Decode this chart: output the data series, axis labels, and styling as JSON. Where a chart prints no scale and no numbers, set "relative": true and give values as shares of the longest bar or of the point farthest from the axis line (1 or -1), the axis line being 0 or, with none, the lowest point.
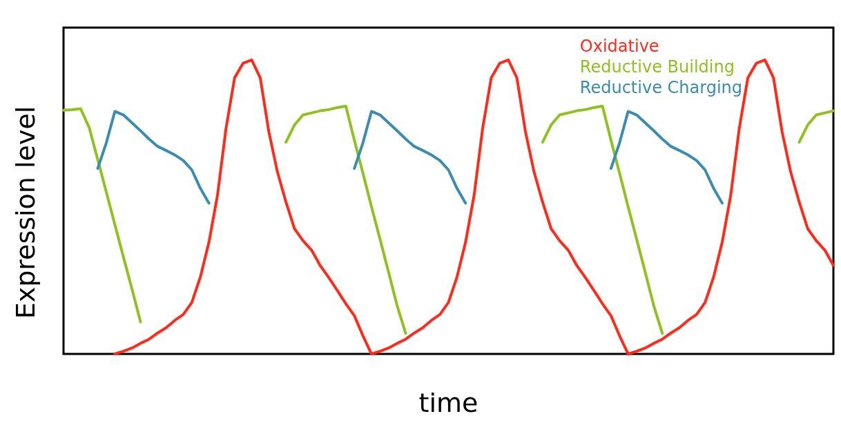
{
  "chart_data": {
    "type": "line",
    "xlabel": "time",
    "ylabel": "Expression level",
    "relative": true,
    "legend": "top right",
    "marker": "none",
    "categories": [
      null,
      null,
      null,
      null,
      null,
      null,
      null,
      null,
      null,
      null,
      null,
      null,
      null,
      null,
      null,
      null,
      null,
      null,
      null,
      null,
      null,
      null,
      null,
      null,
      null,
      null,
      null,
      null,
      null,
      null,
      null,
      null,
      null,
      null,
      null,
      null,
      null,
      null,
      null,
      null,
      null,
      null,
      null,
      null,
      null,
      null,
      null,
      null,
      null,
      null,
      null,
      null,
      null,
      null,
      null,
      null,
      null,
      null,
      null,
      null,
      null,
      null,
      null,
      null,
      null,
      null,
      null,
      null,
      null,
      null,
      null,
      null,
      null,
      null,
      null,
      null,
      null,
      null,
      null,
      null,
      null,
      null,
      null,
      null,
      null,
      null,
      null,
      null,
      null,
      null,
      null
    ],
    "series": [
      {
        "name": "Oxidative",
        "color": "#ff2a1a",
        "values": [
          null,
          null,
          null,
          null,
          null,
          null,
          0,
          0.009,
          0.02,
          0.036,
          0.05,
          0.071,
          0.089,
          0.114,
          0.134,
          0.175,
          0.262,
          0.38,
          0.54,
          0.768,
          0.939,
          0.989,
          1,
          0.939,
          0.756,
          0.62,
          0.517,
          0.426,
          0.385,
          0.353,
          0.301,
          0.26,
          0.216,
          0.171,
          0.13,
          0.062,
          0,
          0.009,
          0.02,
          0.036,
          0.05,
          0.071,
          0.089,
          0.114,
          0.134,
          0.175,
          0.262,
          0.38,
          0.54,
          0.768,
          0.939,
          0.989,
          1,
          0.939,
          0.756,
          0.62,
          0.517,
          0.426,
          0.385,
          0.353,
          0.301,
          0.26,
          0.216,
          0.171,
          0.13,
          0.062,
          0,
          0.009,
          0.02,
          0.036,
          0.05,
          0.071,
          0.089,
          0.114,
          0.134,
          0.175,
          0.262,
          0.38,
          0.54,
          0.768,
          0.939,
          0.989,
          1,
          0.939,
          0.756,
          0.62,
          0.517,
          0.426,
          0.385,
          0.353,
          0.301
        ]
      },
      {
        "name": "Reductive Building",
        "color": "#8dc21f",
        "values": [
          0.829,
          0.831,
          0.834,
          0.77,
          0.661,
          0.551,
          0.44,
          0.33,
          0.221,
          0.109,
          null,
          null,
          null,
          null,
          null,
          null,
          null,
          null,
          null,
          null,
          null,
          null,
          null,
          null,
          null,
          null,
          0.72,
          0.779,
          0.813,
          0.82,
          0.827,
          0.831,
          0.838,
          0.843,
          0.727,
          0.615,
          0.501,
          0.39,
          0.278,
          0.164,
          0.07,
          null,
          null,
          null,
          null,
          null,
          null,
          null,
          null,
          null,
          null,
          null,
          null,
          null,
          null,
          null,
          0.72,
          0.779,
          0.813,
          0.82,
          0.827,
          0.831,
          0.838,
          0.843,
          0.727,
          0.615,
          0.501,
          0.39,
          0.278,
          0.164,
          0.07,
          null,
          null,
          null,
          null,
          null,
          null,
          null,
          null,
          null,
          null,
          null,
          null,
          null,
          null,
          null,
          0.72,
          0.779,
          0.813,
          0.82,
          0.827
        ]
      },
      {
        "name": "Reductive Charging",
        "color": "#3a8db0",
        "values": [
          null,
          null,
          null,
          null,
          0.631,
          0.718,
          0.825,
          0.813,
          0.786,
          0.759,
          0.731,
          0.706,
          0.692,
          0.677,
          0.658,
          0.626,
          0.563,
          0.513,
          null,
          null,
          null,
          null,
          null,
          null,
          null,
          null,
          null,
          null,
          null,
          null,
          null,
          null,
          null,
          null,
          0.631,
          0.718,
          0.825,
          0.813,
          0.786,
          0.759,
          0.731,
          0.706,
          0.692,
          0.677,
          0.658,
          0.626,
          0.563,
          0.513,
          null,
          null,
          null,
          null,
          null,
          null,
          null,
          null,
          null,
          null,
          null,
          null,
          null,
          null,
          null,
          null,
          0.631,
          0.718,
          0.825,
          0.813,
          0.786,
          0.759,
          0.731,
          0.706,
          0.692,
          0.677,
          0.658,
          0.626,
          0.563,
          0.513,
          null,
          null,
          null,
          null,
          null,
          null,
          null,
          null,
          null,
          null,
          null,
          null,
          null
        ]
      }
    ]
  }
}
